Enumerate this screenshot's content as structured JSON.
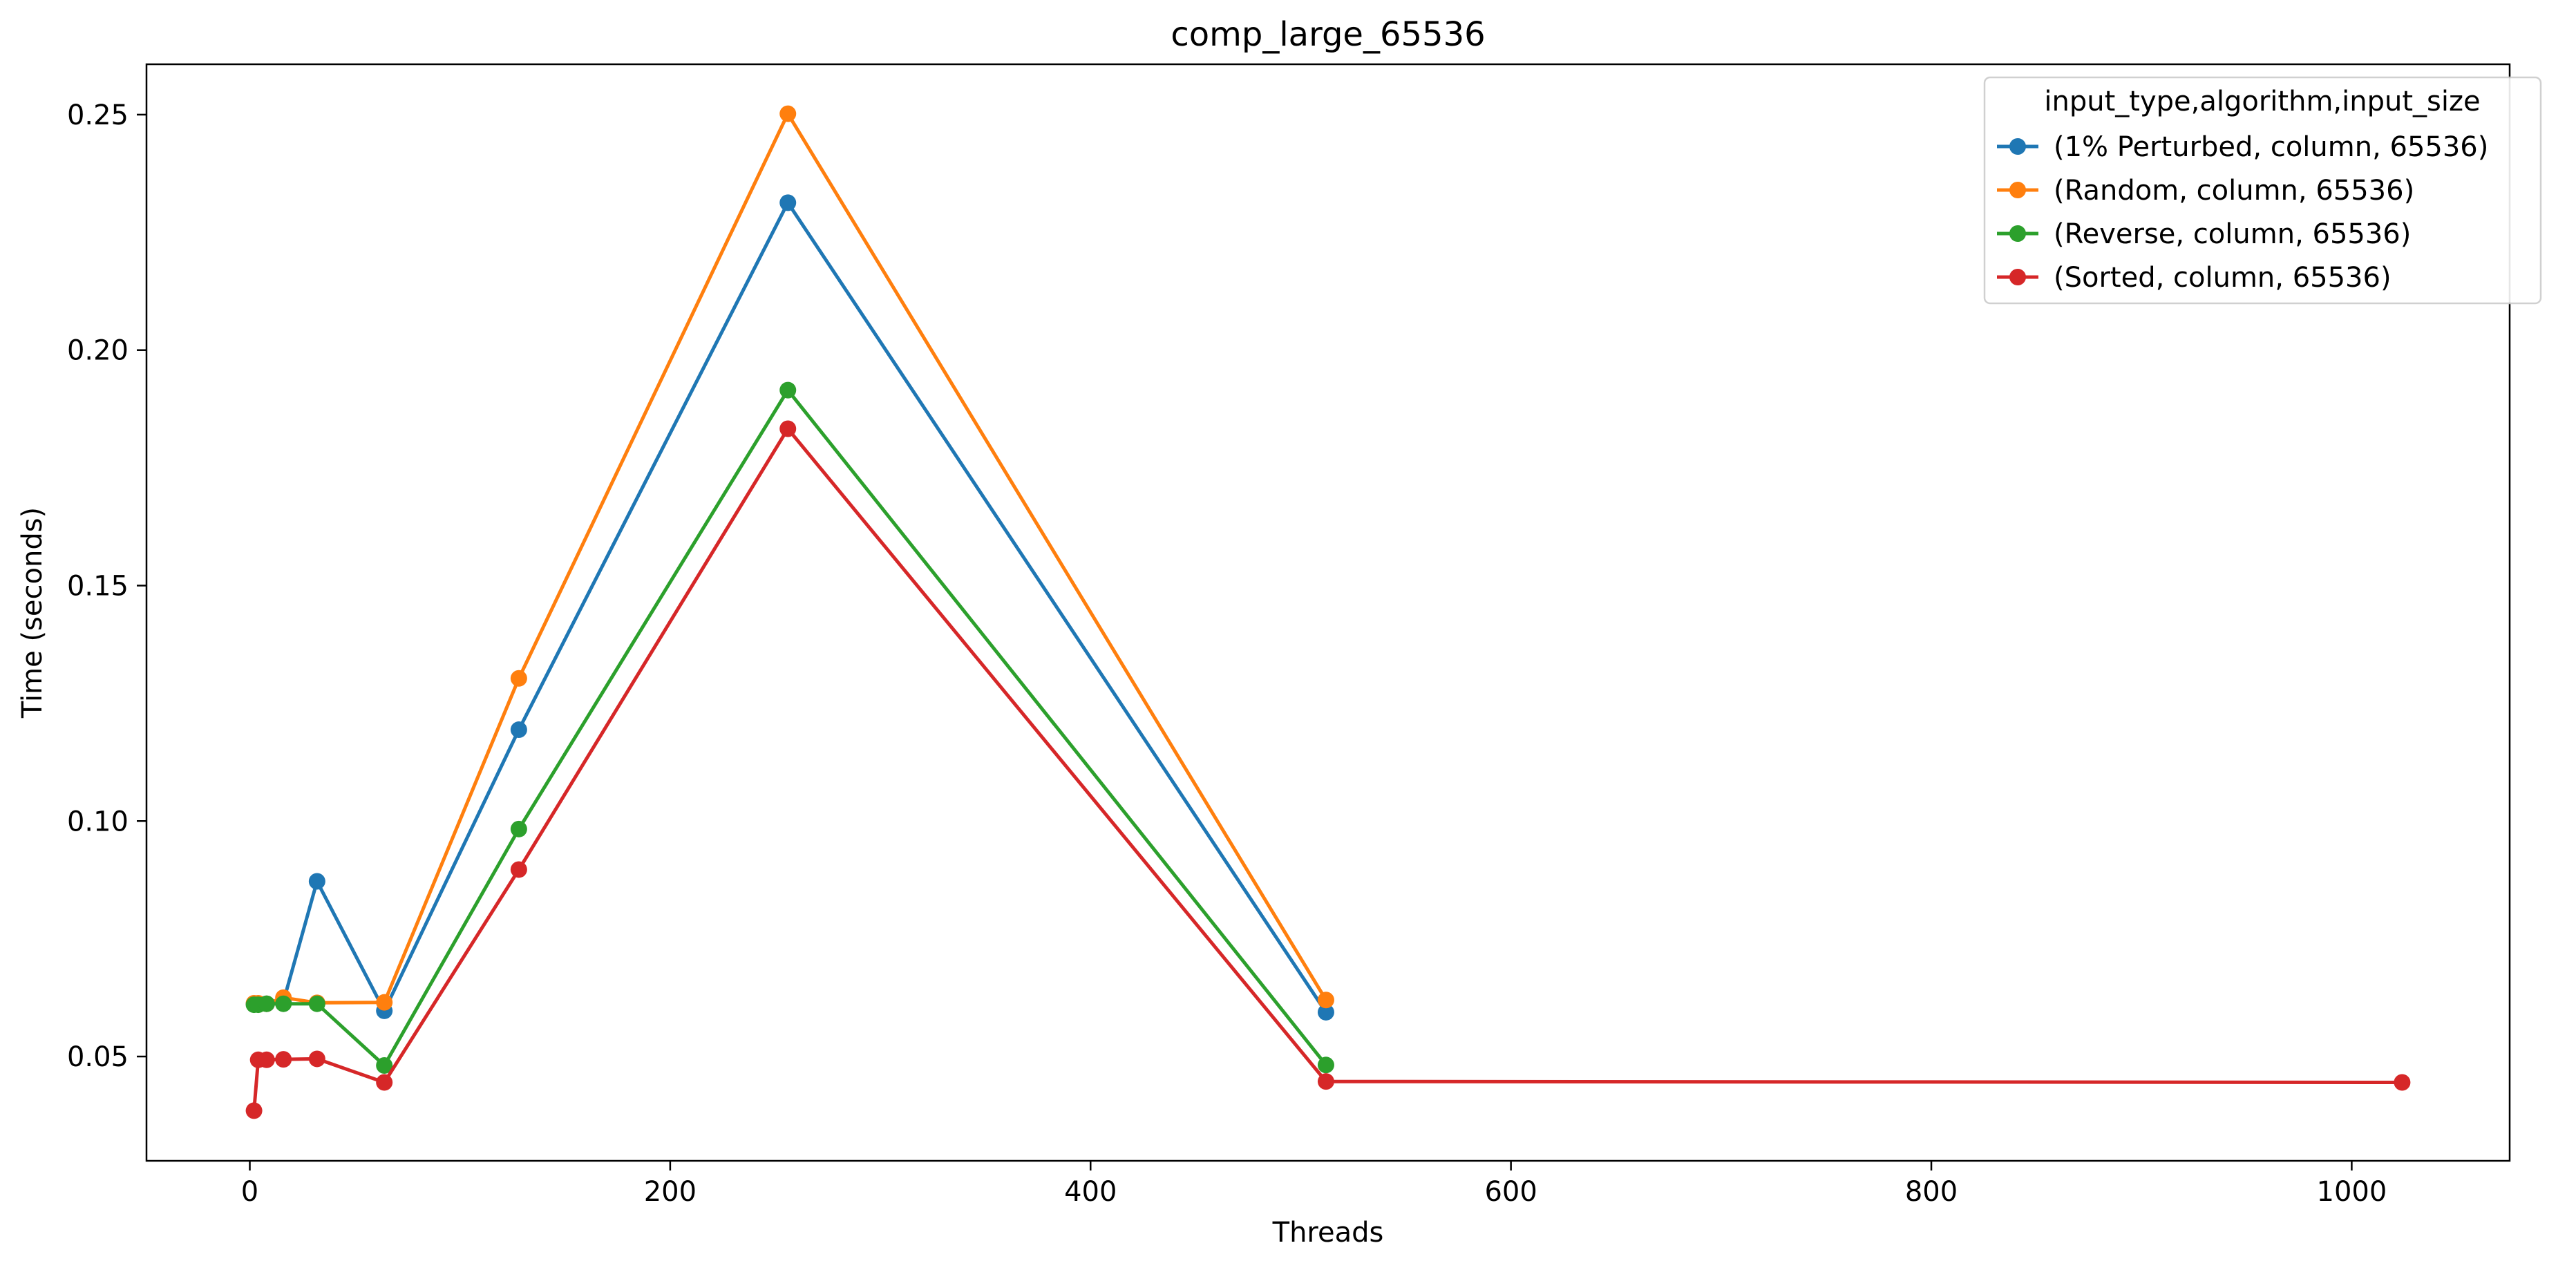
{
  "chart_data": {
    "type": "line",
    "title": "comp_large_65536",
    "xlabel": "Threads",
    "ylabel": "Time (seconds)",
    "xlim": [
      -49.15,
      1075.15
    ],
    "ylim": [
      0.02785,
      0.2607
    ],
    "xticks": [
      0,
      200,
      400,
      600,
      800,
      1000
    ],
    "xtick_labels": [
      "0",
      "200",
      "400",
      "600",
      "800",
      "1000"
    ],
    "yticks": [
      0.05,
      0.1,
      0.15,
      0.2,
      0.25
    ],
    "ytick_labels": [
      "0.05",
      "0.10",
      "0.15",
      "0.20",
      "0.25"
    ],
    "grid": false,
    "legend_title": "input_type,algorithm,input_size",
    "legend_position": "top-right",
    "series": [
      {
        "name": "(1% Perturbed, column, 65536)",
        "color": "#1f77b4",
        "x": [
          2,
          4,
          8,
          16,
          32,
          64,
          128,
          256,
          512
        ],
        "y": [
          0.0612,
          0.0612,
          0.0612,
          0.0617,
          0.0872,
          0.0597,
          0.1194,
          0.2313,
          0.0594
        ]
      },
      {
        "name": "(Random, column, 65536)",
        "color": "#ff7f0e",
        "x": [
          2,
          4,
          8,
          16,
          32,
          64,
          128,
          256,
          512
        ],
        "y": [
          0.0613,
          0.0613,
          0.0612,
          0.0625,
          0.0614,
          0.0615,
          0.1303,
          0.2502,
          0.062
        ]
      },
      {
        "name": "(Reverse, column, 65536)",
        "color": "#2ca02c",
        "x": [
          2,
          4,
          8,
          16,
          32,
          64,
          128,
          256,
          512
        ],
        "y": [
          0.061,
          0.061,
          0.0612,
          0.0612,
          0.0612,
          0.0481,
          0.0983,
          0.1915,
          0.0482
        ]
      },
      {
        "name": "(Sorted, column, 65536)",
        "color": "#d62728",
        "x": [
          2,
          4,
          8,
          16,
          32,
          64,
          128,
          256,
          512,
          1024
        ],
        "y": [
          0.0385,
          0.0493,
          0.0493,
          0.0494,
          0.0495,
          0.0445,
          0.0897,
          0.1833,
          0.0447,
          0.0445
        ]
      }
    ]
  }
}
